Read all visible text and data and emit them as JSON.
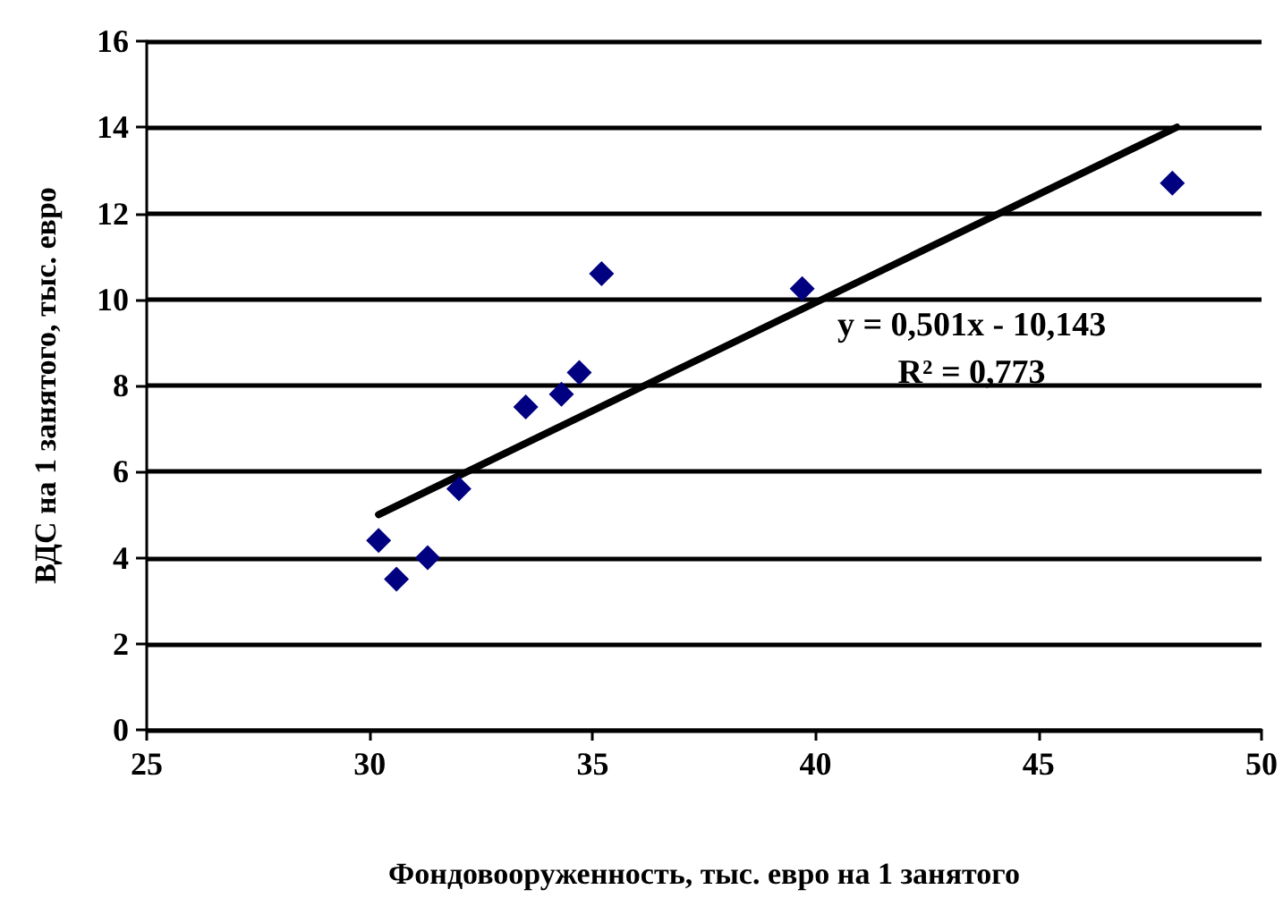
{
  "chart_data": {
    "type": "scatter",
    "xlabel": "Фондовооруженность, тыс. евро на 1 занятого",
    "ylabel": "ВДС на 1 занятого, тыс. евро",
    "xlim": [
      25,
      50
    ],
    "xticks": [
      25,
      30,
      35,
      40,
      45,
      50
    ],
    "ylim": [
      0,
      16
    ],
    "yticks": [
      0,
      2,
      4,
      6,
      8,
      10,
      12,
      14,
      16
    ],
    "grid": "y",
    "marker": "diamond",
    "annotations": [
      "y = 0,501x - 10,143",
      "R² = 0,773"
    ],
    "series": [
      {
        "color": "#000080",
        "x": [
          30.2,
          30.6,
          31.3,
          32.0,
          33.5,
          34.3,
          34.7,
          35.2,
          39.7,
          48.0
        ],
        "values": [
          4.4,
          3.5,
          4.0,
          5.6,
          7.5,
          7.8,
          8.3,
          10.6,
          10.25,
          12.7
        ]
      },
      {
        "type": "line",
        "color": "#000000",
        "marker": "none",
        "line_style": "solid",
        "x": [
          30.2,
          48.1
        ],
        "values": [
          5.0,
          14.0
        ]
      }
    ]
  }
}
